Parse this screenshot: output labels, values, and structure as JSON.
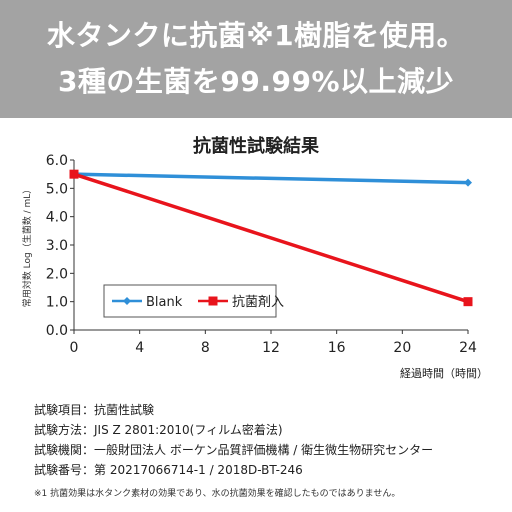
{
  "banner": {
    "line1": "水タンクに抗菌※1樹脂を使用。",
    "line2": "3種の生菌を99.99%以上減少"
  },
  "chart_data": {
    "type": "line",
    "title": "抗菌性試験結果",
    "xlabel": "経過時間（時間）",
    "ylabel": "常用対数 Log（生菌数 / mL）",
    "x_ticks": [
      0,
      4,
      8,
      12,
      16,
      20,
      24
    ],
    "y_ticks": [
      "0.0",
      "1.0",
      "2.0",
      "3.0",
      "4.0",
      "5.0",
      "6.0"
    ],
    "xlim": [
      0,
      24
    ],
    "ylim": [
      0,
      6
    ],
    "grid": false,
    "legend_position": "bottom-left",
    "series": [
      {
        "name": "Blank",
        "color": "#2f8fd8",
        "marker": "diamond",
        "x": [
          0,
          24
        ],
        "y": [
          5.5,
          5.2
        ]
      },
      {
        "name": "抗菌剤入",
        "color": "#e8141c",
        "marker": "square",
        "x": [
          0,
          24
        ],
        "y": [
          5.5,
          1.0
        ]
      }
    ]
  },
  "info": {
    "item": "試験項目：抗菌性試験",
    "method": "試験方法：JIS Z 2801:2010(フィルム密着法)",
    "org": "試験機関：一般財団法人 ボーケン品質評価機構 / 衛生微生物研究センター",
    "number": "試験番号：第 20217066714-1 / 2018D-BT-246"
  },
  "footnote": "※1 抗菌効果は水タンク素材の効果であり、水の抗菌効果を確認したものではありません。"
}
